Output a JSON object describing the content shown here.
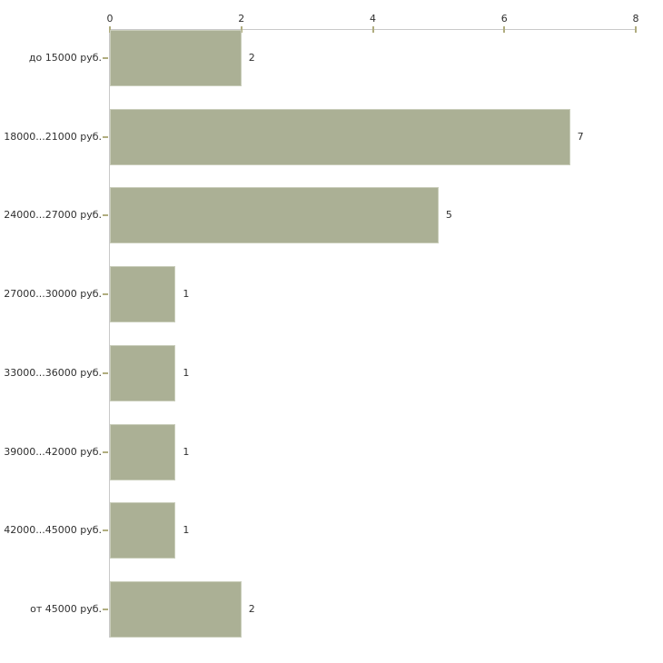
{
  "chart_data": {
    "type": "bar",
    "orientation": "horizontal",
    "title": "",
    "xlabel": "",
    "ylabel": "",
    "categories": [
      "до 15000 руб.",
      "18000...21000 руб.",
      "24000...27000 руб.",
      "27000...30000 руб.",
      "33000...36000 руб.",
      "39000...42000 руб.",
      "42000...45000 руб.",
      "от 45000 руб."
    ],
    "values": [
      2,
      7,
      5,
      1,
      1,
      1,
      1,
      2
    ],
    "value_labels": [
      "2",
      "7",
      "5",
      "1",
      "1",
      "1",
      "1",
      "2"
    ],
    "xlim": [
      0,
      8
    ],
    "x_ticks": [
      0,
      2,
      4,
      6,
      8
    ],
    "x_tick_labels": [
      "0",
      "2",
      "4",
      "6",
      "8"
    ],
    "grid": false,
    "legend": false,
    "axis_position": "top",
    "colors": {
      "bar_fill": "#abb095",
      "bar_border": "#c9cdba",
      "axis_line": "#c9c9c9",
      "tick_mark": "#b0ad7f",
      "text": "#2f2f2f",
      "background": "#ffffff"
    }
  }
}
